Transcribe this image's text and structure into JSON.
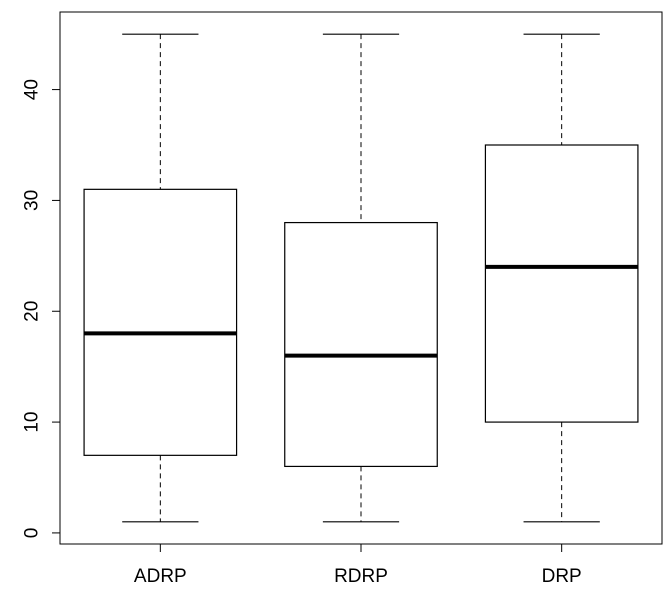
{
  "chart_data": {
    "type": "boxplot",
    "categories": [
      "ADRP",
      "RDRP",
      "DRP"
    ],
    "boxes": [
      {
        "name": "ADRP",
        "min": 1,
        "q1": 7,
        "median": 18,
        "q3": 31,
        "max": 45
      },
      {
        "name": "RDRP",
        "min": 1,
        "q1": 6,
        "median": 16,
        "q3": 28,
        "max": 45
      },
      {
        "name": "DRP",
        "min": 1,
        "q1": 10,
        "median": 24,
        "q3": 35,
        "max": 45
      }
    ],
    "y_ticks": [
      0,
      10,
      20,
      30,
      40
    ],
    "ylim": [
      -1,
      47
    ],
    "grid": false,
    "title": "",
    "xlabel": "",
    "ylabel": ""
  }
}
